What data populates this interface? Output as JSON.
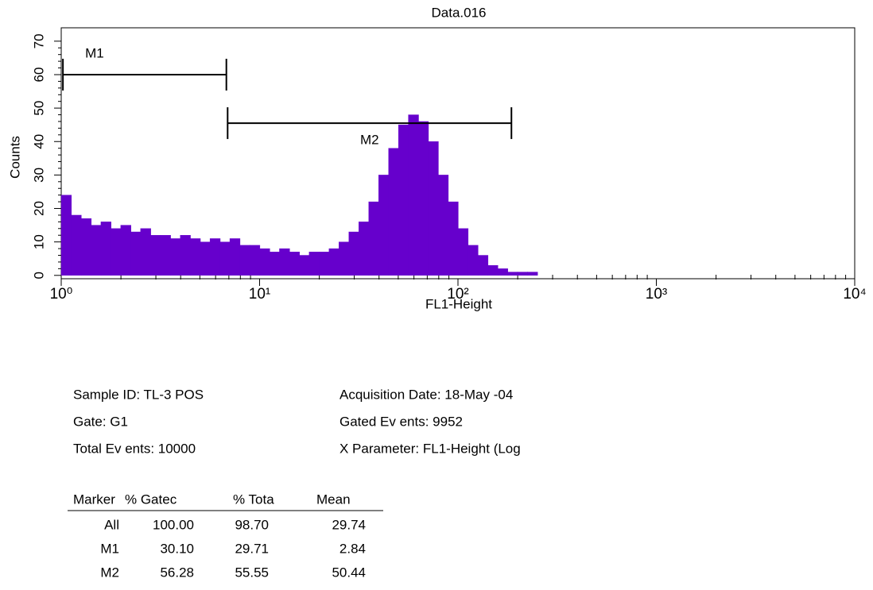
{
  "chart_data": {
    "type": "histogram",
    "title": "Data.016",
    "x_label": "FL1-Height",
    "y_label": "Counts",
    "xscale": "log",
    "xlim": [
      1,
      10000
    ],
    "xticks": [
      {
        "value": 1,
        "label": "10⁰"
      },
      {
        "value": 10,
        "label": "10¹"
      },
      {
        "value": 100,
        "label": "10²"
      },
      {
        "value": 1000,
        "label": "10³"
      },
      {
        "value": 10000,
        "label": "10⁴"
      }
    ],
    "ylim": [
      -1,
      74
    ],
    "yticks": [
      0,
      10,
      20,
      30,
      40,
      50,
      60,
      70
    ],
    "bins": [
      1,
      1.122,
      1.259,
      1.413,
      1.585,
      1.778,
      1.995,
      2.239,
      2.512,
      2.818,
      3.162,
      3.548,
      3.981,
      4.467,
      5.012,
      5.623,
      6.31,
      7.079,
      7.943,
      8.913,
      10,
      11.22,
      12.59,
      14.13,
      15.85,
      17.78,
      19.95,
      22.39,
      25.12,
      28.18,
      31.62,
      35.48,
      39.81,
      44.67,
      50.12,
      56.23,
      63.1,
      70.79,
      79.43,
      89.13,
      100,
      112.2,
      125.9,
      141.3,
      158.5,
      177.8,
      199.5,
      223.9,
      251.2,
      281.8,
      316.2,
      354.8,
      398.1
    ],
    "values": [
      24,
      18,
      17,
      15,
      16,
      14,
      15,
      13,
      14,
      12,
      12,
      11,
      12,
      11,
      10,
      11,
      10,
      11,
      9,
      9,
      8,
      7,
      8,
      7,
      6,
      7,
      7,
      8,
      10,
      13,
      16,
      22,
      30,
      38,
      45,
      48,
      46,
      40,
      30,
      22,
      14,
      9,
      6,
      3,
      2,
      1,
      1,
      1,
      0,
      0,
      0,
      0
    ],
    "color": "#6600cc",
    "markers": [
      {
        "label": "M1",
        "start": 1.02,
        "end": 6.8,
        "level": 60
      },
      {
        "label": "M2",
        "start": 6.9,
        "end": 186,
        "level": 45.5
      }
    ]
  },
  "info": {
    "left": [
      "Sample ID: TL-3 POS",
      "Gate: G1",
      "Total Ev ents: 10000"
    ],
    "right": [
      "Acquisition Date: 18-May -04",
      "Gated Ev ents: 9952",
      "X Parameter: FL1-Height (Log"
    ]
  },
  "table": {
    "header": [
      "Marker",
      "% Gatec",
      "% Tota",
      "Mean"
    ],
    "rows": [
      [
        "All",
        "100.00",
        "98.70",
        "29.74"
      ],
      [
        "M1",
        "30.10",
        "29.71",
        "2.84"
      ],
      [
        "M2",
        "56.28",
        "55.55",
        "50.44"
      ]
    ]
  }
}
